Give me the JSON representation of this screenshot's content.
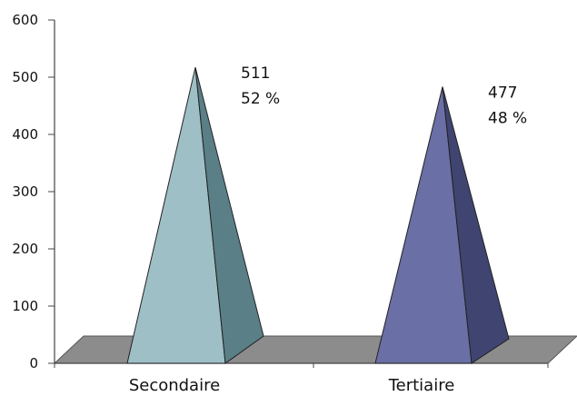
{
  "chart_data": {
    "type": "bar",
    "bar_shape": "pyramid-3d",
    "categories": [
      "Secondaire",
      "Tertiaire"
    ],
    "values": [
      511,
      477
    ],
    "percent_labels": [
      "52 %",
      "48 %"
    ],
    "ylim": [
      0,
      600
    ],
    "yticks": [
      0,
      100,
      200,
      300,
      400,
      500,
      600
    ],
    "grid": false,
    "legend": "none",
    "colors": {
      "series_front": [
        "#9fbfc6",
        "#6a6fa6"
      ],
      "series_side": [
        "#5a7f87",
        "#3f4470"
      ],
      "floor": "#8c8c8c",
      "axis": "#444444"
    }
  }
}
